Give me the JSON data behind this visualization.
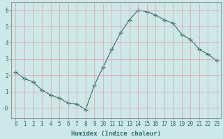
{
  "x": [
    0,
    1,
    2,
    3,
    4,
    5,
    6,
    7,
    8,
    9,
    10,
    11,
    12,
    13,
    14,
    15,
    16,
    17,
    18,
    19,
    20,
    21,
    22,
    23
  ],
  "y": [
    2.2,
    1.8,
    1.6,
    1.1,
    0.8,
    0.6,
    0.3,
    0.25,
    -0.1,
    1.4,
    2.5,
    3.6,
    4.6,
    5.4,
    6.0,
    5.9,
    5.7,
    5.4,
    5.2,
    4.5,
    4.2,
    3.6,
    3.3,
    2.9
  ],
  "bg_color": "#cce8e8",
  "line_color": "#2d6e6e",
  "marker": "+",
  "marker_size": 4,
  "xlabel": "Humidex (Indice chaleur)",
  "xlim": [
    -0.5,
    23.5
  ],
  "ylim": [
    -0.6,
    6.5
  ],
  "yticks": [
    0,
    1,
    2,
    3,
    4,
    5,
    6
  ],
  "ytick_labels": [
    "-0",
    "1",
    "2",
    "3",
    "4",
    "5",
    "6"
  ],
  "xticks": [
    0,
    1,
    2,
    3,
    4,
    5,
    6,
    7,
    8,
    9,
    10,
    11,
    12,
    13,
    14,
    15,
    16,
    17,
    18,
    19,
    20,
    21,
    22,
    23
  ],
  "grid_color": "#e8a0a0",
  "grid_lw": 0.5,
  "line_width": 0.8,
  "xlabel_fontsize": 6.5,
  "tick_fontsize": 5.5
}
